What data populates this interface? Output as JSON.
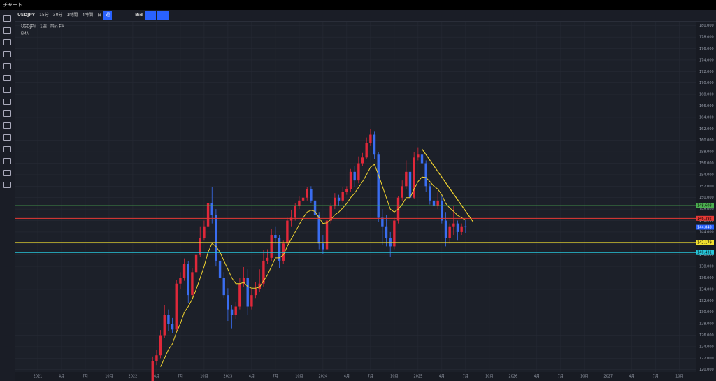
{
  "window_title": "チャート",
  "toolbar": {
    "symbol": "USDJPY",
    "intervals": [
      "15分",
      "30分",
      "1時間",
      "4時間",
      "日",
      "週"
    ],
    "price_type": "Bid"
  },
  "chart_data": {
    "type": "candlestick",
    "legend": {
      "symbol": "USDJPY",
      "interval": "1週",
      "source": "Min FX",
      "indicator": "EMA"
    },
    "up_color": "#e0283a",
    "down_color": "#3a6df0",
    "ema_color": "#f2d430",
    "grid": true,
    "candles": {
      "x": [
        14.5,
        15,
        15.5,
        16,
        16.5,
        17,
        17.5,
        18,
        18.5,
        19,
        19.5,
        20,
        20.5,
        21,
        21.5,
        22,
        22.5,
        23,
        23.5,
        24,
        24.5,
        25,
        25.5,
        26,
        26.5,
        27,
        27.5,
        28,
        28.5,
        29,
        29.5,
        30,
        30.5,
        31,
        31.5,
        32,
        32.5,
        33,
        33.5,
        34,
        34.5,
        35,
        35.5,
        36,
        36.5,
        37,
        37.5,
        38,
        38.5,
        39,
        39.5,
        40,
        40.5,
        41,
        41.5,
        42,
        42.5,
        43,
        43.5,
        44,
        44.5,
        45,
        45.5,
        46,
        46.5,
        47,
        47.5,
        48,
        48.5,
        49,
        49.5,
        50,
        50.5,
        51,
        51.5,
        52,
        52.5,
        53,
        53.5,
        54
      ],
      "open": [
        118,
        121.5,
        122.5,
        126,
        129.5,
        128,
        127,
        135,
        136,
        138.5,
        133,
        137,
        140,
        143,
        145,
        149,
        147,
        139,
        136,
        133,
        130.5,
        129.5,
        131,
        135,
        136,
        131,
        133,
        134,
        135,
        139,
        139.5,
        143.5,
        143,
        139,
        142,
        146,
        146.5,
        148.5,
        149.5,
        150,
        151.5,
        149.5,
        147,
        142,
        141,
        146,
        148.5,
        150,
        149.5,
        151,
        151.5,
        154.5,
        153,
        156,
        157,
        159.5,
        161,
        157.5,
        146.5,
        145,
        143,
        141.5,
        146,
        150,
        152,
        154.5,
        150,
        157,
        157.5,
        156,
        152,
        149.5,
        148.5,
        149.5,
        146,
        143,
        145,
        145.5,
        144,
        145
      ],
      "high": [
        122.3,
        123.4,
        126.9,
        131.3,
        130.5,
        129,
        135.6,
        137,
        139.4,
        139,
        137.7,
        140.3,
        145,
        146,
        150,
        151.9,
        148,
        140.2,
        137,
        134.2,
        131.2,
        131.8,
        136,
        137.9,
        137.5,
        134,
        135.3,
        137.5,
        140.9,
        141,
        144.5,
        145,
        143.5,
        142.5,
        146.5,
        147.8,
        149,
        150.2,
        150.8,
        151.9,
        152,
        150,
        147.5,
        143.5,
        146.8,
        149,
        150.8,
        150.5,
        151.9,
        152,
        155,
        155.5,
        157.2,
        157.8,
        160.5,
        162,
        161.5,
        158,
        148,
        147,
        144,
        146.5,
        150.3,
        153,
        156.5,
        155,
        157.9,
        158.8,
        158.5,
        156.5,
        152.5,
        150.5,
        151,
        150.5,
        147.5,
        145.5,
        148.5,
        146,
        145.5,
        146.2
      ],
      "low": [
        117.5,
        120.8,
        122,
        125.5,
        126.8,
        126.4,
        126.8,
        134,
        135.5,
        131.6,
        132.6,
        136.5,
        139.6,
        142.5,
        144.5,
        145.5,
        138,
        135.5,
        132.5,
        128.5,
        127.2,
        128.8,
        130.5,
        134.5,
        129.6,
        130.5,
        132.5,
        133.5,
        134.5,
        138.5,
        139,
        142,
        137.7,
        138.5,
        141.5,
        145,
        146,
        148,
        148.8,
        149.5,
        149,
        146.5,
        141,
        140.2,
        140.8,
        145.5,
        148,
        148.5,
        149,
        150.5,
        151,
        151.8,
        152.5,
        155.5,
        156.8,
        159,
        156.8,
        145.8,
        141.7,
        141.5,
        139.6,
        141,
        145.5,
        149.5,
        151.5,
        149.5,
        149.8,
        156.5,
        155,
        151,
        148.8,
        146.5,
        148,
        145.5,
        141.5,
        142,
        143.5,
        142.5,
        143.5,
        143.8
      ],
      "close": [
        121.5,
        122.5,
        126,
        129.5,
        128,
        127,
        135,
        136,
        138.5,
        133,
        137,
        140,
        143,
        145,
        149,
        147,
        139,
        136,
        133,
        130.5,
        129.5,
        131,
        135,
        136,
        131,
        133,
        134,
        135,
        139,
        139.5,
        143.5,
        143,
        139,
        142,
        146,
        146.5,
        148.5,
        149.5,
        150,
        151.5,
        149.5,
        147,
        142,
        141,
        146,
        148.5,
        150,
        149.5,
        151,
        151.5,
        154.5,
        153,
        156,
        157,
        159.5,
        161,
        157.5,
        146.5,
        145,
        143,
        141.5,
        146,
        150,
        152,
        154.5,
        150,
        157,
        157.5,
        156,
        152,
        149.5,
        148.5,
        149.5,
        146,
        143,
        145,
        145.5,
        144,
        145,
        144.84
      ]
    },
    "ema": [
      null,
      null,
      120.5,
      122,
      123.5,
      124.5,
      126.5,
      128,
      130,
      131,
      132.3,
      134,
      136,
      138,
      140.5,
      142,
      141.5,
      140.5,
      139,
      137.5,
      136,
      135,
      135,
      135.2,
      134.5,
      134.2,
      134.2,
      134.4,
      135.5,
      136.5,
      138,
      139.5,
      139.5,
      140,
      141.5,
      142.8,
      144,
      145.3,
      146.5,
      147.5,
      147.8,
      147.6,
      146.5,
      145.5,
      145.6,
      146.2,
      147,
      147.5,
      148.2,
      149,
      150,
      150.8,
      151.8,
      152.8,
      154,
      155.3,
      155.8,
      154,
      152,
      150,
      148,
      147.5,
      148,
      148.8,
      150,
      150,
      151.5,
      152.8,
      153.6,
      153.5,
      152.8,
      152,
      151.5,
      150.5,
      149,
      148.2,
      147.6,
      146.9,
      146.5,
      146.1
    ],
    "levels": [
      {
        "value": 148.608,
        "label": "148.608",
        "color": "#4caf50"
      },
      {
        "value": 146.392,
        "label": "146.392",
        "color": "#e53935"
      },
      {
        "value": 142.179,
        "label": "142.179",
        "color": "#f2e030"
      },
      {
        "value": 140.431,
        "label": "140.431",
        "color": "#26c6da"
      }
    ],
    "last_price": {
      "value": 144.84,
      "label": "144.840",
      "color": "#2962ff"
    },
    "trendline": {
      "x": [
        48.5,
        55
      ],
      "y": [
        158.5,
        145.7
      ],
      "color": "#f2d430"
    },
    "xlim": [
      -2.82,
      83.05
    ],
    "xticks": [
      {
        "value": 0,
        "label": "2021"
      },
      {
        "value": 3,
        "label": "4月"
      },
      {
        "value": 6,
        "label": "7月"
      },
      {
        "value": 9,
        "label": "10月"
      },
      {
        "value": 12,
        "label": "2022"
      },
      {
        "value": 15,
        "label": "4月"
      },
      {
        "value": 18,
        "label": "7月"
      },
      {
        "value": 21,
        "label": "10月"
      },
      {
        "value": 24,
        "label": "2023"
      },
      {
        "value": 27,
        "label": "4月"
      },
      {
        "value": 30,
        "label": "7月"
      },
      {
        "value": 33,
        "label": "10月"
      },
      {
        "value": 36,
        "label": "2024"
      },
      {
        "value": 39,
        "label": "4月"
      },
      {
        "value": 42,
        "label": "7月"
      },
      {
        "value": 45,
        "label": "10月"
      },
      {
        "value": 48,
        "label": "2025"
      },
      {
        "value": 51,
        "label": "4月"
      },
      {
        "value": 54,
        "label": "7月"
      },
      {
        "value": 57,
        "label": "10月"
      },
      {
        "value": 60,
        "label": "2026"
      },
      {
        "value": 63,
        "label": "4月"
      },
      {
        "value": 66,
        "label": "7月"
      },
      {
        "value": 69,
        "label": "10月"
      },
      {
        "value": 72,
        "label": "2027"
      },
      {
        "value": 75,
        "label": "4月"
      },
      {
        "value": 78,
        "label": "7月"
      },
      {
        "value": 81,
        "label": "10月"
      }
    ],
    "ylim": [
      119.6,
      180.7
    ],
    "yticks": [
      {
        "value": 120,
        "label": "120.000"
      },
      {
        "value": 122,
        "label": "122.000"
      },
      {
        "value": 124,
        "label": "124.000"
      },
      {
        "value": 126,
        "label": "126.000"
      },
      {
        "value": 128,
        "label": "128.000"
      },
      {
        "value": 130,
        "label": "130.000"
      },
      {
        "value": 132,
        "label": "132.000"
      },
      {
        "value": 134,
        "label": "134.000"
      },
      {
        "value": 136,
        "label": "136.000"
      },
      {
        "value": 138,
        "label": "138.000"
      },
      {
        "value": 140,
        "label": "140.000"
      },
      {
        "value": 142,
        "label": "142.000"
      },
      {
        "value": 144,
        "label": "144.000"
      },
      {
        "value": 146,
        "label": "146.000"
      },
      {
        "value": 148,
        "label": "148.000"
      },
      {
        "value": 150,
        "label": "150.000"
      },
      {
        "value": 152,
        "label": "152.000"
      },
      {
        "value": 154,
        "label": "154.000"
      },
      {
        "value": 156,
        "label": "156.000"
      },
      {
        "value": 158,
        "label": "158.000"
      },
      {
        "value": 160,
        "label": "160.000"
      },
      {
        "value": 162,
        "label": "162.000"
      },
      {
        "value": 164,
        "label": "164.000"
      },
      {
        "value": 166,
        "label": "166.000"
      },
      {
        "value": 168,
        "label": "168.000"
      },
      {
        "value": 170,
        "label": "170.000"
      },
      {
        "value": 172,
        "label": "172.000"
      },
      {
        "value": 174,
        "label": "174.000"
      },
      {
        "value": 176,
        "label": "176.000"
      },
      {
        "value": 178,
        "label": "178.000"
      },
      {
        "value": 180,
        "label": "180.000"
      }
    ]
  }
}
